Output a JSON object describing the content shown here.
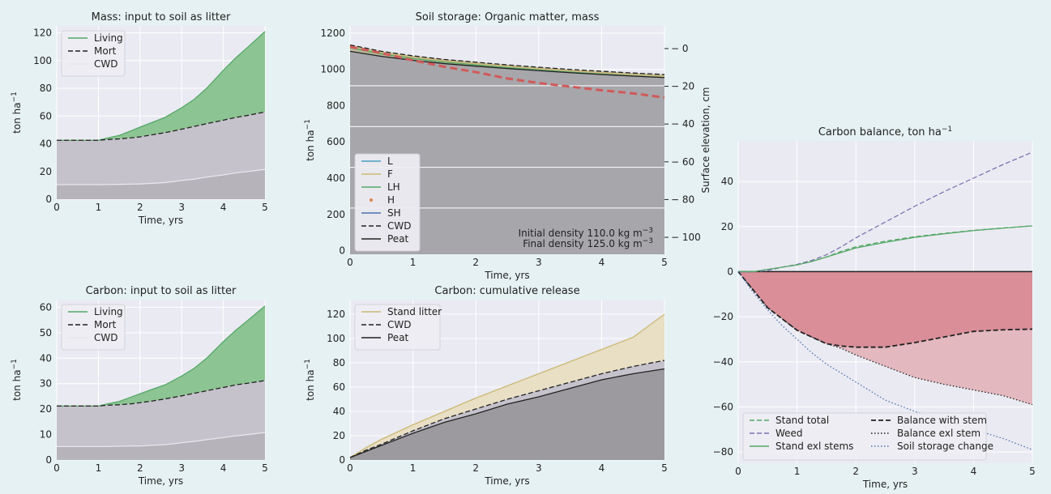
{
  "figure": {
    "background": "#e6f1f3",
    "panel_background": "#eaeaf2",
    "grid_color": "#ffffff",
    "tick_color": "#222222"
  },
  "chart_data": [
    {
      "id": "mass-litter",
      "type": "area",
      "title": "Mass: input to soil as litter",
      "xlabel": "Time, yrs",
      "ylabel": "ton ha$^{-1}$",
      "ylabel_main": "ton ha",
      "ylabel_sup": "−1",
      "xlim": [
        0,
        5
      ],
      "ylim": [
        0,
        125
      ],
      "xticks": [
        0,
        1,
        2,
        3,
        4,
        5
      ],
      "yticks": [
        0,
        20,
        40,
        60,
        80,
        100,
        120
      ],
      "grid": true,
      "legend": {
        "placement": "top-left",
        "entries": [
          "Living",
          "Mort",
          "CWD"
        ]
      },
      "x": [
        0,
        0.5,
        1,
        1.2,
        1.5,
        1.8,
        2,
        2.3,
        2.6,
        3,
        3.3,
        3.6,
        4,
        4.3,
        4.6,
        5
      ],
      "series": [
        {
          "name": "Living",
          "style": "solid",
          "color": "#55a868",
          "fill": "#8dc493",
          "values": [
            42.5,
            42.5,
            42.5,
            44,
            46,
            49.5,
            52,
            55.5,
            59,
            66,
            72,
            80,
            93,
            102,
            110,
            121
          ]
        },
        {
          "name": "Mort",
          "style": "dashed",
          "color": "#222222",
          "fill": "#c5c2cb",
          "values": [
            42.5,
            42.5,
            42.5,
            43,
            43.5,
            44.3,
            45,
            46.5,
            48,
            50.5,
            52.5,
            54.5,
            57,
            59,
            60.5,
            63
          ]
        },
        {
          "name": "CWD",
          "style": "solid",
          "color": "#e6e6ec",
          "fill": "#b7b3ba",
          "values": [
            10.5,
            10.5,
            10.5,
            10.6,
            10.7,
            10.9,
            11,
            11.5,
            12,
            13.5,
            14.5,
            16,
            17.5,
            19,
            20,
            21.5
          ]
        }
      ]
    },
    {
      "id": "soil-storage",
      "type": "area",
      "title": "Soil storage: Organic matter, mass",
      "xlabel": "Time, yrs",
      "ylabel": "ton ha$^{-1}$",
      "ylabel_main": "ton ha",
      "ylabel_sup": "−1",
      "ylabel2": "Surface elevation, cm",
      "xlim": [
        0,
        5
      ],
      "ylim": [
        -20,
        1240
      ],
      "xticks": [
        0,
        1,
        2,
        3,
        4,
        5
      ],
      "yticks": [
        0,
        200,
        400,
        600,
        800,
        1000,
        1200
      ],
      "y2lim": [
        -109,
        12
      ],
      "y2ticks": [
        0,
        -20,
        -40,
        -60,
        -80,
        -100
      ],
      "grid": true,
      "hlines": [
        910,
        685,
        460,
        235
      ],
      "legend": {
        "placement": "bottom-left",
        "entries": [
          "L",
          "F",
          "LH",
          "H",
          "SH",
          "CWD",
          "Peat"
        ]
      },
      "legend_colors": [
        "#4c9fc4",
        "#ccb974",
        "#55a868",
        "#dd8452",
        "#4c72b0",
        "#222222",
        "#222222"
      ],
      "annotation": [
        "Initial density 110.0 kg m",
        "Final density  125.0 kg m"
      ],
      "annotation_sup": [
        "−3",
        "−3"
      ],
      "x": [
        0,
        0.5,
        1,
        1.5,
        2,
        2.5,
        3,
        3.5,
        4,
        4.5,
        5
      ],
      "series": [
        {
          "name": "CWD",
          "style": "dashed",
          "color": "#222222",
          "values": [
            1135,
            1100,
            1075,
            1055,
            1040,
            1025,
            1012,
            1000,
            990,
            980,
            972
          ]
        },
        {
          "name": "F",
          "style": "solid",
          "color": "#ccb974",
          "values": [
            1128,
            1093,
            1068,
            1048,
            1032,
            1018,
            1005,
            993,
            982,
            972,
            962
          ]
        },
        {
          "name": "LH",
          "style": "solid",
          "color": "#55a868",
          "values": [
            1120,
            1085,
            1060,
            1040,
            1025,
            1010,
            997,
            985,
            974,
            964,
            955
          ]
        },
        {
          "name": "Peat",
          "style": "solid",
          "color": "#222222",
          "values": [
            1100,
            1072,
            1050,
            1032,
            1018,
            1005,
            993,
            982,
            972,
            963,
            955
          ]
        },
        {
          "name": "Surface elevation",
          "style": "dashed",
          "color": "#d05a5a",
          "values": [
            1125,
            1090,
            1050,
            1015,
            985,
            950,
            925,
            905,
            885,
            868,
            845
          ]
        }
      ]
    },
    {
      "id": "carbon-balance",
      "type": "line",
      "title": "Carbon balance, ton ha$^{-1}$",
      "title_main": "Carbon balance, ton ha",
      "title_sup": "−1",
      "xlabel": "Time, yrs",
      "xlim": [
        0,
        5
      ],
      "ylim": [
        -85,
        58
      ],
      "xticks": [
        0,
        1,
        2,
        3,
        4,
        5
      ],
      "yticks": [
        40,
        20,
        0,
        -20,
        -40,
        -60,
        -80
      ],
      "grid": true,
      "legend": {
        "placement": "bottom-left",
        "entries": [
          "Stand total",
          "Weed",
          "Stand exl stems",
          "Balance with stem",
          "Balance exl stem",
          "Soil storage change"
        ]
      },
      "x": [
        0,
        0.25,
        0.5,
        0.75,
        1,
        1.25,
        1.5,
        1.75,
        2,
        2.5,
        3,
        3.5,
        4,
        4.5,
        5
      ],
      "series": [
        {
          "name": "Stand total",
          "style": "dashed",
          "color": "#55a868",
          "values": [
            0,
            0,
            0.5,
            2,
            3,
            4.5,
            6.5,
            9,
            11,
            13.5,
            15.5,
            17,
            18.3,
            19.4,
            20.3
          ]
        },
        {
          "name": "Weed",
          "style": "dashed",
          "color": "#8172b3",
          "values": [
            0,
            0,
            0.5,
            2,
            3.2,
            5,
            7.5,
            11,
            15,
            22,
            29,
            35.5,
            41.5,
            47.5,
            53
          ]
        },
        {
          "name": "Stand exl stems",
          "style": "solid",
          "color": "#55a868",
          "values": [
            0,
            0,
            1,
            2,
            3,
            4.5,
            6.5,
            8.5,
            10.5,
            13,
            15.2,
            16.8,
            18.2,
            19.3,
            20.3
          ]
        },
        {
          "name": "Balance with stem",
          "style": "dashed",
          "color": "#222222",
          "values": [
            0,
            -8,
            -16,
            -21,
            -26,
            -29,
            -32,
            -33,
            -33.5,
            -33.5,
            -31.5,
            -29,
            -26.5,
            -25.8,
            -25.5
          ]
        },
        {
          "name": "Balance exl stem",
          "style": "dotted",
          "color": "#222222",
          "values": [
            0,
            -8,
            -16,
            -21,
            -26,
            -29,
            -32,
            -34,
            -37,
            -42,
            -47,
            -50,
            -52.5,
            -55,
            -59
          ]
        },
        {
          "name": "Soil storage change",
          "style": "dotted",
          "color": "#4c72b0",
          "values": [
            0,
            -9,
            -17,
            -24,
            -30,
            -36,
            -41,
            -45,
            -49,
            -57,
            -62,
            -66,
            -70,
            -74,
            -79
          ]
        }
      ]
    },
    {
      "id": "carbon-litter",
      "type": "area",
      "title": "Carbon: input to soil as litter",
      "xlabel": "Time, yrs",
      "ylabel": "ton ha$^{-1}$",
      "ylabel_main": "ton ha",
      "ylabel_sup": "−1",
      "xlim": [
        0,
        5
      ],
      "ylim": [
        0,
        63
      ],
      "xticks": [
        0,
        1,
        2,
        3,
        4,
        5
      ],
      "yticks": [
        0,
        10,
        20,
        30,
        40,
        50,
        60
      ],
      "grid": true,
      "legend": {
        "placement": "top-left",
        "entries": [
          "Living",
          "Mort",
          "CWD"
        ]
      },
      "x": [
        0,
        0.5,
        1,
        1.2,
        1.5,
        1.8,
        2,
        2.3,
        2.6,
        3,
        3.3,
        3.6,
        4,
        4.3,
        4.6,
        5
      ],
      "series": [
        {
          "name": "Living",
          "style": "solid",
          "color": "#55a868",
          "fill": "#8dc493",
          "values": [
            21.2,
            21.2,
            21.2,
            22,
            23,
            24.8,
            26,
            27.8,
            29.5,
            33,
            36,
            40,
            46.5,
            51,
            55,
            60.5
          ]
        },
        {
          "name": "Mort",
          "style": "dashed",
          "color": "#222222",
          "fill": "#c5c2cb",
          "values": [
            21.2,
            21.2,
            21.2,
            21.5,
            21.7,
            22.1,
            22.5,
            23.2,
            24,
            25.2,
            26.2,
            27.2,
            28.5,
            29.5,
            30.2,
            31.2
          ]
        },
        {
          "name": "CWD",
          "style": "solid",
          "color": "#e6e6ec",
          "fill": "#b7b3ba",
          "values": [
            5.3,
            5.3,
            5.3,
            5.3,
            5.4,
            5.5,
            5.5,
            5.8,
            6,
            6.8,
            7.3,
            8,
            8.8,
            9.5,
            10,
            10.8
          ]
        }
      ]
    },
    {
      "id": "carbon-release",
      "type": "area",
      "title": "Carbon: cumulative release",
      "xlabel": "Time, yrs",
      "ylabel": "ton ha$^{-1}$",
      "ylabel_main": "ton ha",
      "ylabel_sup": "−1",
      "xlim": [
        0,
        5
      ],
      "ylim": [
        0,
        132
      ],
      "xticks": [
        0,
        1,
        2,
        3,
        4,
        5
      ],
      "yticks": [
        0,
        20,
        40,
        60,
        80,
        100,
        120
      ],
      "grid": true,
      "legend": {
        "placement": "top-left",
        "entries": [
          "Stand litter",
          "CWD",
          "Peat"
        ]
      },
      "x": [
        0,
        0.25,
        0.5,
        1,
        1.5,
        2,
        2.5,
        3,
        3.5,
        4,
        4.5,
        5
      ],
      "series": [
        {
          "name": "Stand litter",
          "style": "solid",
          "color": "#ccb974",
          "fill": "#e8dfc5",
          "values": [
            2,
            10,
            17,
            29,
            40,
            51,
            61,
            71,
            81,
            91,
            101,
            120
          ]
        },
        {
          "name": "CWD",
          "style": "dashed",
          "color": "#222222",
          "fill": "#c5c2cb",
          "values": [
            2,
            8,
            13,
            24,
            34,
            42,
            50,
            57,
            64,
            71,
            77,
            82
          ]
        },
        {
          "name": "Peat",
          "style": "solid",
          "color": "#222222",
          "fill": "#9c9a9e",
          "values": [
            2,
            7,
            12,
            22,
            31,
            38,
            46,
            52,
            59,
            66,
            71,
            75
          ]
        }
      ]
    }
  ]
}
